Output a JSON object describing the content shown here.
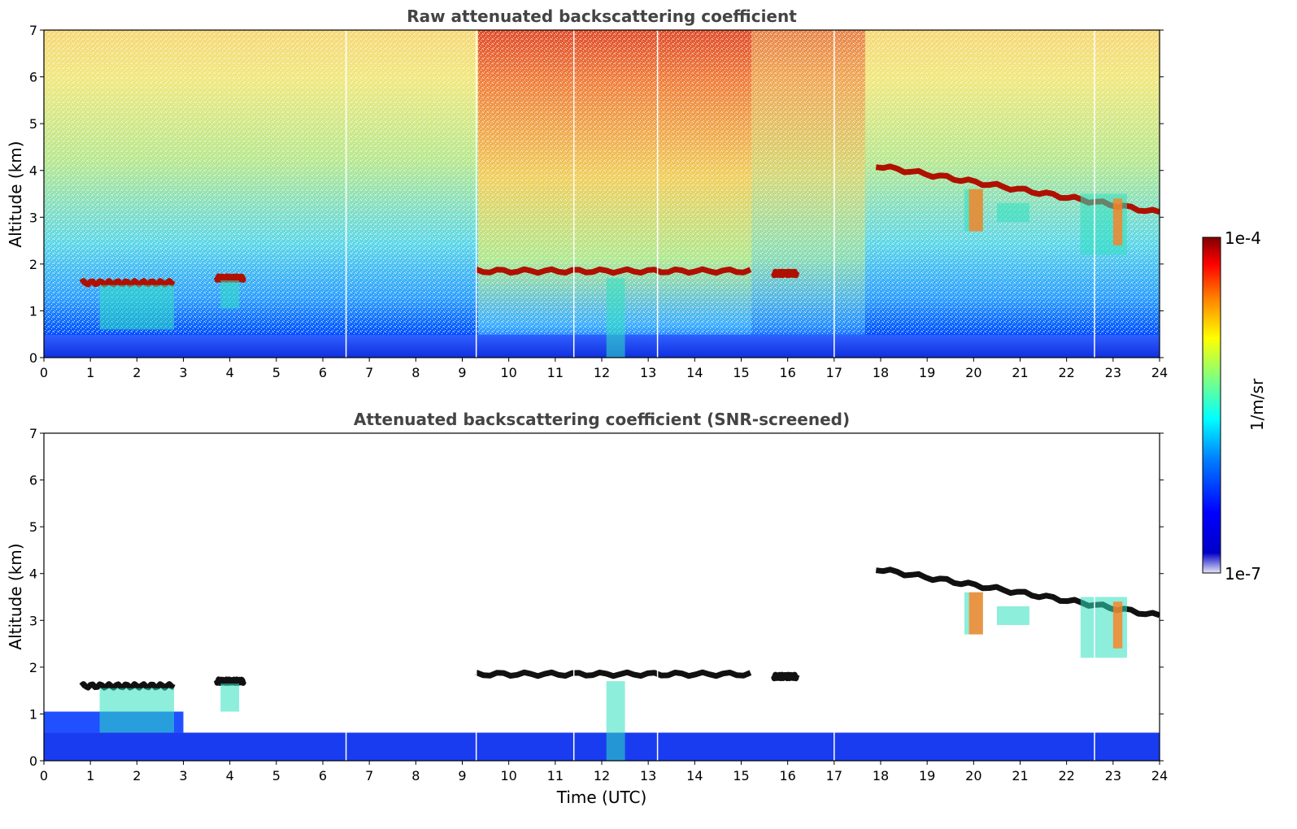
{
  "chart_data": [
    {
      "type": "heatmap",
      "title": "Raw attenuated backscattering coefficient",
      "xlabel": "",
      "ylabel": "Altitude (km)",
      "xlim": [
        0,
        24
      ],
      "ylim": [
        0,
        7
      ],
      "xticks": [
        "0",
        "1",
        "2",
        "3",
        "4",
        "5",
        "6",
        "7",
        "8",
        "9",
        "10",
        "11",
        "12",
        "13",
        "14",
        "15",
        "16",
        "17",
        "18",
        "19",
        "20",
        "21",
        "22",
        "23",
        "24"
      ],
      "yticks": [
        "0",
        "1",
        "2",
        "3",
        "4",
        "5",
        "6",
        "7"
      ],
      "color_scale": "log",
      "features": {
        "cloud_base_layers": [
          {
            "time": [
              0.8,
              2.8
            ],
            "altitude_km": 1.6
          },
          {
            "time": [
              3.7,
              4.3
            ],
            "altitude_km": 1.7
          },
          {
            "time": [
              9.3,
              15.2
            ],
            "altitude_km": 1.85
          },
          {
            "time": [
              15.7,
              16.2
            ],
            "altitude_km": 1.8
          },
          {
            "time": [
              17.9,
              24.0
            ],
            "altitude_km": [
              4.1,
              3.1
            ]
          }
        ],
        "boundary_layer_top_km": 0.45
      }
    },
    {
      "type": "heatmap",
      "title": "Attenuated backscattering coefficient (SNR-screened)",
      "xlabel": "Time (UTC)",
      "ylabel": "Altitude (km)",
      "xlim": [
        0,
        24
      ],
      "ylim": [
        0,
        7
      ],
      "xticks": [
        "0",
        "1",
        "2",
        "3",
        "4",
        "5",
        "6",
        "7",
        "8",
        "9",
        "10",
        "11",
        "12",
        "13",
        "14",
        "15",
        "16",
        "17",
        "18",
        "19",
        "20",
        "21",
        "22",
        "23",
        "24"
      ],
      "yticks": [
        "0",
        "1",
        "2",
        "3",
        "4",
        "5",
        "6",
        "7"
      ],
      "color_scale": "log"
    }
  ],
  "colorbar": {
    "label": "1/m/sr",
    "max_label": "1e-4",
    "min_label": "1e-7",
    "colors": [
      "#e6e6f5",
      "#0000c8",
      "#0000ff",
      "#0080ff",
      "#00ffff",
      "#80ff80",
      "#ffff00",
      "#ff8000",
      "#ff0000",
      "#800000"
    ]
  }
}
